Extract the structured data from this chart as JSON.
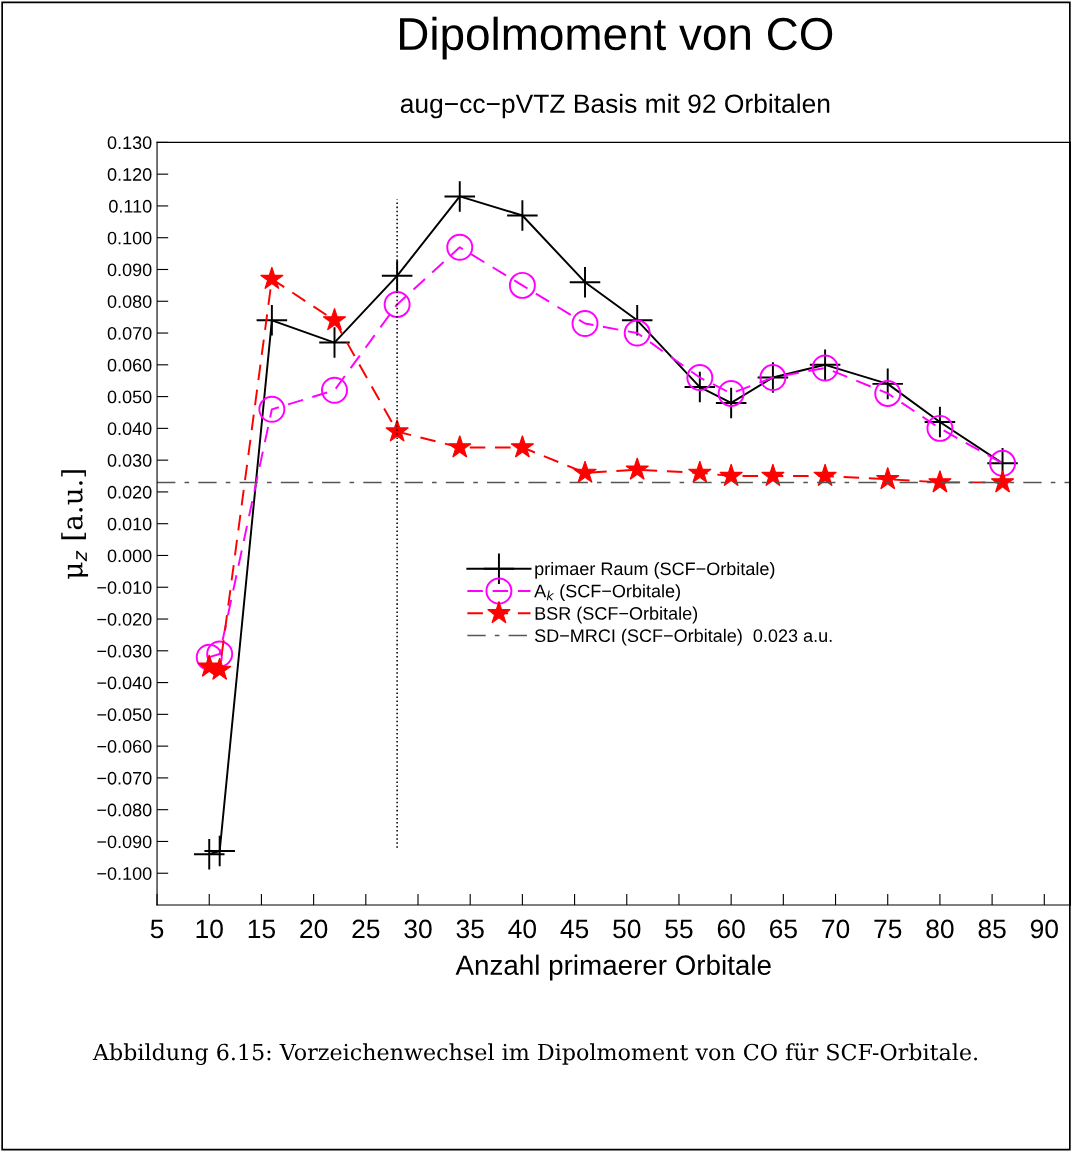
{
  "chart_data": {
    "type": "line",
    "title": "Dipolmoment von CO",
    "subtitle": "aug−cc−pVTZ Basis mit 92 Orbitalen",
    "xlabel": "Anzahl primaerer Orbitale",
    "ylabel": "μ$_{z}$ [a.u.]",
    "x": [
      10,
      11,
      16,
      22,
      28,
      34,
      40,
      46,
      51,
      57,
      60,
      64,
      69,
      75,
      80,
      86
    ],
    "series": [
      {
        "name": "primaer Raum (SCF−Orbitale)",
        "color": "#000000",
        "marker": "cross",
        "line_style": "solid",
        "values": [
          -0.094,
          -0.093,
          0.074,
          0.067,
          0.088,
          0.113,
          0.107,
          0.086,
          0.074,
          0.053,
          0.048,
          0.056,
          0.06,
          0.054,
          0.042,
          0.029
        ]
      },
      {
        "name": "A$_{k}$ (SCF−Orbitale)",
        "color": "#ff00ff",
        "marker": "circle",
        "line_style": "dashed",
        "values": [
          -0.032,
          -0.031,
          0.046,
          0.052,
          0.079,
          0.097,
          0.085,
          0.073,
          0.07,
          0.056,
          0.051,
          0.056,
          0.059,
          0.051,
          0.04,
          0.029
        ]
      },
      {
        "name": "BSR (SCF−Orbitale)",
        "color": "#ff0000",
        "marker": "star",
        "line_style": "dashed",
        "values": [
          -0.035,
          -0.036,
          0.087,
          0.074,
          0.039,
          0.034,
          0.034,
          0.026,
          0.027,
          0.026,
          0.025,
          0.025,
          0.025,
          0.024,
          0.023,
          0.023
        ]
      }
    ],
    "ref_lines": [
      {
        "axis": "y",
        "value": 0.023,
        "label": "SD−MRCI (SCF−Orbitale)  0.023 a.u.",
        "color": "#555555",
        "line_style": "dashdot"
      },
      {
        "axis": "x",
        "value": 28,
        "label": null,
        "color": "#000000",
        "line_style": "dotted"
      }
    ],
    "xlim": [
      5,
      92.5
    ],
    "xticks": [
      5,
      10,
      15,
      20,
      25,
      30,
      35,
      40,
      45,
      50,
      55,
      60,
      65,
      70,
      75,
      80,
      85,
      90
    ],
    "ylim": [
      -0.11,
      0.13
    ],
    "yticks": [
      {
        "value": -0.1,
        "label": "−0.100"
      },
      {
        "value": -0.09,
        "label": "−0.090"
      },
      {
        "value": -0.08,
        "label": "−0.080"
      },
      {
        "value": -0.07,
        "label": "−0.070"
      },
      {
        "value": -0.06,
        "label": "−0.060"
      },
      {
        "value": -0.05,
        "label": "−0.050"
      },
      {
        "value": -0.04,
        "label": "−0.040"
      },
      {
        "value": -0.03,
        "label": "−0.030"
      },
      {
        "value": -0.02,
        "label": "−0.020"
      },
      {
        "value": -0.01,
        "label": "−0.010"
      },
      {
        "value": 0,
        "label": "0.000"
      },
      {
        "value": 0.01,
        "label": "0.010"
      },
      {
        "value": 0.02,
        "label": "0.020"
      },
      {
        "value": 0.03,
        "label": "0.030"
      },
      {
        "value": 0.04,
        "label": "0.040"
      },
      {
        "value": 0.05,
        "label": "0.050"
      },
      {
        "value": 0.06,
        "label": "0.060"
      },
      {
        "value": 0.07,
        "label": "0.070"
      },
      {
        "value": 0.08,
        "label": "0.080"
      },
      {
        "value": 0.09,
        "label": "0.090"
      },
      {
        "value": 0.1,
        "label": "0.100"
      },
      {
        "value": 0.11,
        "label": "0.110"
      },
      {
        "value": 0.12,
        "label": "0.120"
      },
      {
        "value": 0.13,
        "label": "0.130"
      }
    ],
    "grid": false,
    "legend": "center",
    "annotations": [
      "Abbildung 6.15: Vorzeichenwechsel im Dipolmoment von CO für SCF-Orbitale."
    ]
  }
}
